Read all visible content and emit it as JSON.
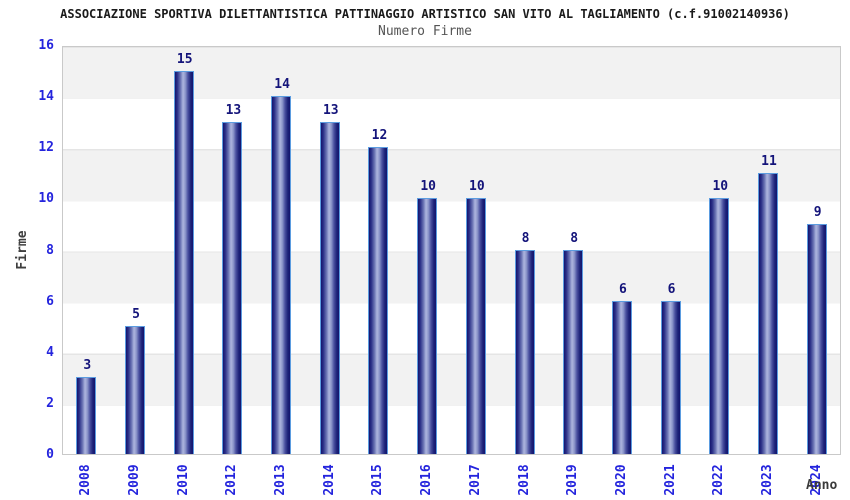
{
  "chart_data": {
    "type": "bar",
    "title": "ASSOCIAZIONE SPORTIVA DILETTANTISTICA PATTINAGGIO ARTISTICO SAN VITO AL TAGLIAMENTO (c.f.91002140936)",
    "subtitle": "Numero Firme",
    "xlabel": "Anno",
    "ylabel": "Firme",
    "categories": [
      "2008",
      "2009",
      "2010",
      "2012",
      "2013",
      "2014",
      "2015",
      "2016",
      "2017",
      "2018",
      "2019",
      "2020",
      "2021",
      "2022",
      "2023",
      "2024"
    ],
    "values": [
      3,
      5,
      15,
      13,
      14,
      13,
      12,
      10,
      10,
      8,
      8,
      6,
      6,
      10,
      11,
      9
    ],
    "ylim": [
      0,
      16
    ],
    "ytick_step": 2,
    "yticks": [
      0,
      2,
      4,
      6,
      8,
      10,
      12,
      14,
      16
    ],
    "legend": "none",
    "grid": "alternating horizontal bands every 2 units",
    "band_colors": [
      "#f2f2f2",
      "#ffffff"
    ],
    "colors": {
      "bar_edge_dark": "#14146e",
      "bar_center_light": "#aab2dc",
      "bar_border": "#5b9ce0",
      "tick_label_blue": "#2424dd",
      "value_label_navy": "#14147a",
      "title_color": "#1a1a1a",
      "subtitle_color": "#555555",
      "axis_title_color": "#3a3a3a",
      "plot_border": "#c9c9c9"
    }
  }
}
